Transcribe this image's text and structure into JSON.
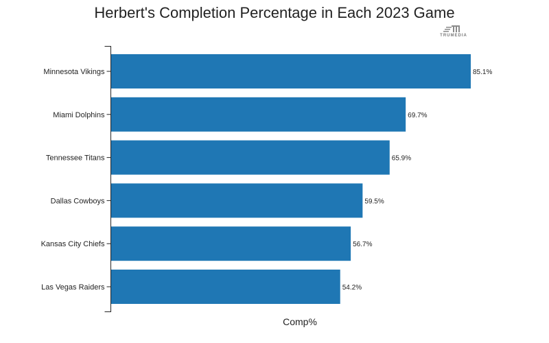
{
  "chart_data": {
    "type": "bar",
    "orientation": "horizontal",
    "title": "Herbert's Completion Percentage in Each 2023 Game",
    "xlabel": "Comp%",
    "ylabel": "",
    "xlim": [
      0,
      85.1
    ],
    "categories": [
      "Minnesota Vikings",
      "Miami Dolphins",
      "Tennessee Titans",
      "Dallas Cowboys",
      "Kansas City Chiefs",
      "Las Vegas Raiders"
    ],
    "values": [
      85.1,
      69.7,
      65.9,
      59.5,
      56.7,
      54.2
    ],
    "data_labels": [
      "85.1%",
      "69.7%",
      "65.9%",
      "59.5%",
      "56.7%",
      "54.2%"
    ],
    "bar_color": "#1f77b4",
    "grid": false,
    "legend": "none"
  },
  "branding": {
    "logo_text": "TRUMEDIA",
    "logo_icon": "trumedia-logo-icon"
  }
}
